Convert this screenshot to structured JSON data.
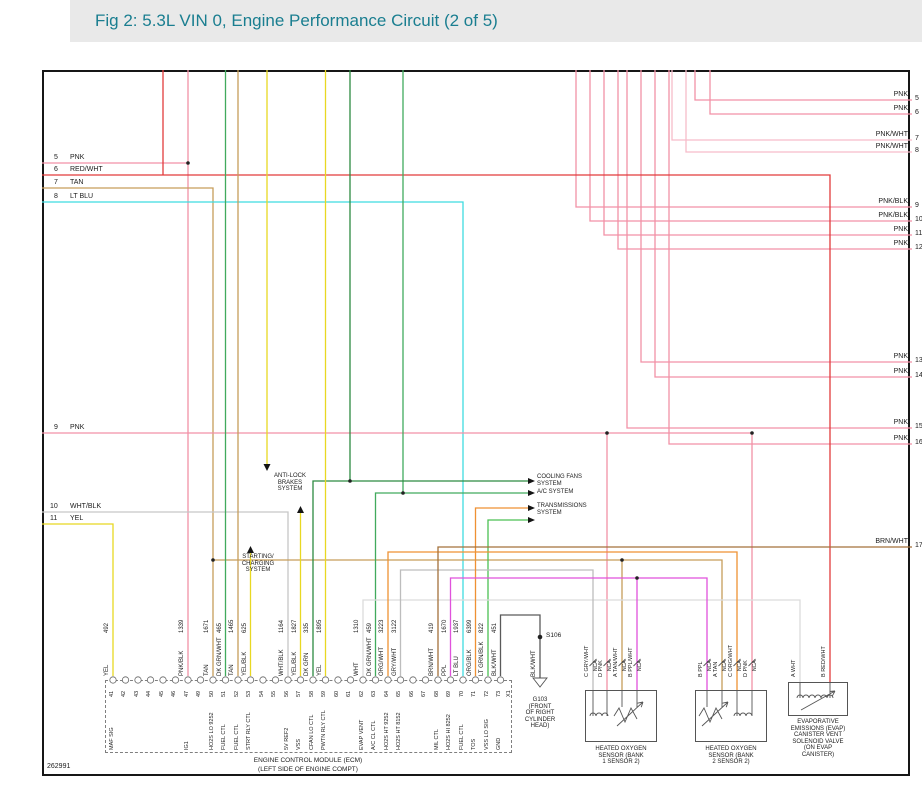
{
  "header": {
    "title": "Fig 2: 5.3L VIN 0, Engine Performance Circuit (2 of 5)"
  },
  "footer": {
    "diagram_number": "262991"
  },
  "colors": {
    "pnk": "#f291a6",
    "pnkw": "#f6bcca",
    "red": "#e23b3b",
    "tan": "#c79d5b",
    "cyn": "#3fdce0",
    "yel": "#e8d822",
    "dg": "#2c8a41",
    "dgw": "#41aa5d",
    "lgb": "#4cc153",
    "org": "#ef9133",
    "brn": "#a3713b",
    "ppl": "#e052dc",
    "gry": "#bdbdbd",
    "wht": "#dcdcdc",
    "whb": "#c6c6c6",
    "blw": "#5a5a5a",
    "title_text": "#1a7e90",
    "title_bar": "#e9e9e9"
  },
  "left_entries": [
    {
      "num": "5",
      "label": "PNK"
    },
    {
      "num": "6",
      "label": "RED/WHT"
    },
    {
      "num": "7",
      "label": "TAN"
    },
    {
      "num": "8",
      "label": "LT BLU"
    },
    {
      "num": "9",
      "label": "PNK"
    },
    {
      "num": "10",
      "label": "WHT/BLK"
    },
    {
      "num": "11",
      "label": "YEL"
    }
  ],
  "right_entries": [
    {
      "num": "5",
      "label": "PNK"
    },
    {
      "num": "6",
      "label": "PNK"
    },
    {
      "num": "7",
      "label": "PNK/WHT"
    },
    {
      "num": "8",
      "label": "PNK/WHT"
    },
    {
      "num": "9",
      "label": "PNK/BLK"
    },
    {
      "num": "10",
      "label": "PNK/BLK"
    },
    {
      "num": "11",
      "label": "PNK"
    },
    {
      "num": "12",
      "label": "PNK"
    },
    {
      "num": "13",
      "label": "PNK"
    },
    {
      "num": "14",
      "label": "PNK"
    },
    {
      "num": "15",
      "label": "PNK"
    },
    {
      "num": "16",
      "label": "PNK"
    },
    {
      "num": "17",
      "label": "BRN/WHT"
    }
  ],
  "systems": {
    "abs": "ANTI-LOCK\nBRAKES\nSYSTEM",
    "charging": "STARTING/\nCHARGING\nSYSTEM",
    "cooling": "COOLING FANS\nSYSTEM",
    "ac": "A/C SYSTEM",
    "trans": "TRANSMISSIONS\nSYSTEM"
  },
  "ecm": {
    "title": "ENGINE CONTROL MODULE (ECM)",
    "location": "(LEFT SIDE OF ENGINE COMPT)",
    "connector": "X1",
    "pins": [
      {
        "num": "41",
        "fn": "MAF SIG",
        "wire": "492",
        "color": "YEL"
      },
      {
        "num": "42"
      },
      {
        "num": "43"
      },
      {
        "num": "44"
      },
      {
        "num": "45"
      },
      {
        "num": "46"
      },
      {
        "num": "47",
        "fn": "IG1",
        "wire": "1339",
        "color": "PNK/BLK"
      },
      {
        "num": "49"
      },
      {
        "num": "50",
        "fn": "HO2S LO 9252",
        "wire": "1671",
        "color": "TAN"
      },
      {
        "num": "51",
        "fn": "FUEL CTL",
        "wire": "465",
        "color": "DK GRN/WHT"
      },
      {
        "num": "52",
        "fn": "FUEL CTL",
        "wire": "1465",
        "color": "TAN"
      },
      {
        "num": "53",
        "fn": "STRT RLY CTL",
        "wire": "625",
        "color": "YEL/BLK"
      },
      {
        "num": "54"
      },
      {
        "num": "55"
      },
      {
        "num": "56",
        "fn": "5V REF2",
        "wire": "1164",
        "color": "WHT/BLK"
      },
      {
        "num": "57",
        "fn": "VSS",
        "wire": "1827",
        "color": "YEL/BLK"
      },
      {
        "num": "58",
        "fn": "CFAN LO CTL",
        "wire": "335",
        "color": "DK GRN"
      },
      {
        "num": "59",
        "fn": "PWTN RLY CTL",
        "wire": "1895",
        "color": "YEL"
      },
      {
        "num": "60"
      },
      {
        "num": "61"
      },
      {
        "num": "62",
        "fn": "EVAP VENT",
        "wire": "1310",
        "color": "WHT"
      },
      {
        "num": "63",
        "fn": "A/C CL CTL",
        "wire": "459",
        "color": "DK GRN/WHT"
      },
      {
        "num": "64",
        "fn": "HO2S HT 9252",
        "wire": "3223",
        "color": "ORG/WHT"
      },
      {
        "num": "65",
        "fn": "HO2S HT 8152",
        "wire": "3122",
        "color": "GRY/WHT"
      },
      {
        "num": "66"
      },
      {
        "num": "67"
      },
      {
        "num": "68",
        "fn": "MIL CTL",
        "wire": "419",
        "color": "BRN/WHT"
      },
      {
        "num": "69",
        "fn": "HO2S HI 8252",
        "wire": "1670",
        "color": "PPL"
      },
      {
        "num": "70",
        "fn": "FUEL CTL",
        "wire": "1937",
        "color": "LT BLU"
      },
      {
        "num": "71",
        "fn": "TOS",
        "wire": "6399",
        "color": "ORG/BLK"
      },
      {
        "num": "72",
        "fn": "VSS LO SIG",
        "wire": "822",
        "color": "LT GRN/BLK"
      },
      {
        "num": "73",
        "fn": "GND",
        "wire": "451",
        "color": "BLK/WHT"
      }
    ]
  },
  "components": {
    "ho2s_b1": {
      "title": "HEATED OXYGEN\nSENSOR (BANK\n1 SENSOR 2)",
      "pins": [
        {
          "label": "C  GRY/WHT",
          "nca": "NCA"
        },
        {
          "label": "D  PNK",
          "nca": "NCA"
        },
        {
          "label": "A  TAN/WHT",
          "nca": "NCA"
        },
        {
          "label": "B  PPL/WHT",
          "nca": "NCA"
        }
      ]
    },
    "ho2s_b2": {
      "title": "HEATED OXYGEN\nSENSOR (BANK\n2 SENSOR 2)",
      "pins": [
        {
          "label": "B  PPL",
          "nca": "NCA"
        },
        {
          "label": "A  TAN",
          "nca": "NCA"
        },
        {
          "label": "C  ORG/WHT",
          "nca": "NCA"
        },
        {
          "label": "D  PNK",
          "nca": "NCA"
        }
      ]
    },
    "evap": {
      "title": "EVAPORATIVE\nEMISSIONS (EVAP)\nCANISTER VENT\nSOLENOID VALVE\n(ON EVAP\nCANISTER)",
      "pins": [
        {
          "label": "A  WHT"
        },
        {
          "label": "B  RED/WHT"
        }
      ]
    }
  },
  "grounds": {
    "splice": "S106",
    "ground": "G103\n(FRONT\nOF RIGHT\nCYLINDER\nHEAD)",
    "wire_color": "BLK/WHT"
  }
}
